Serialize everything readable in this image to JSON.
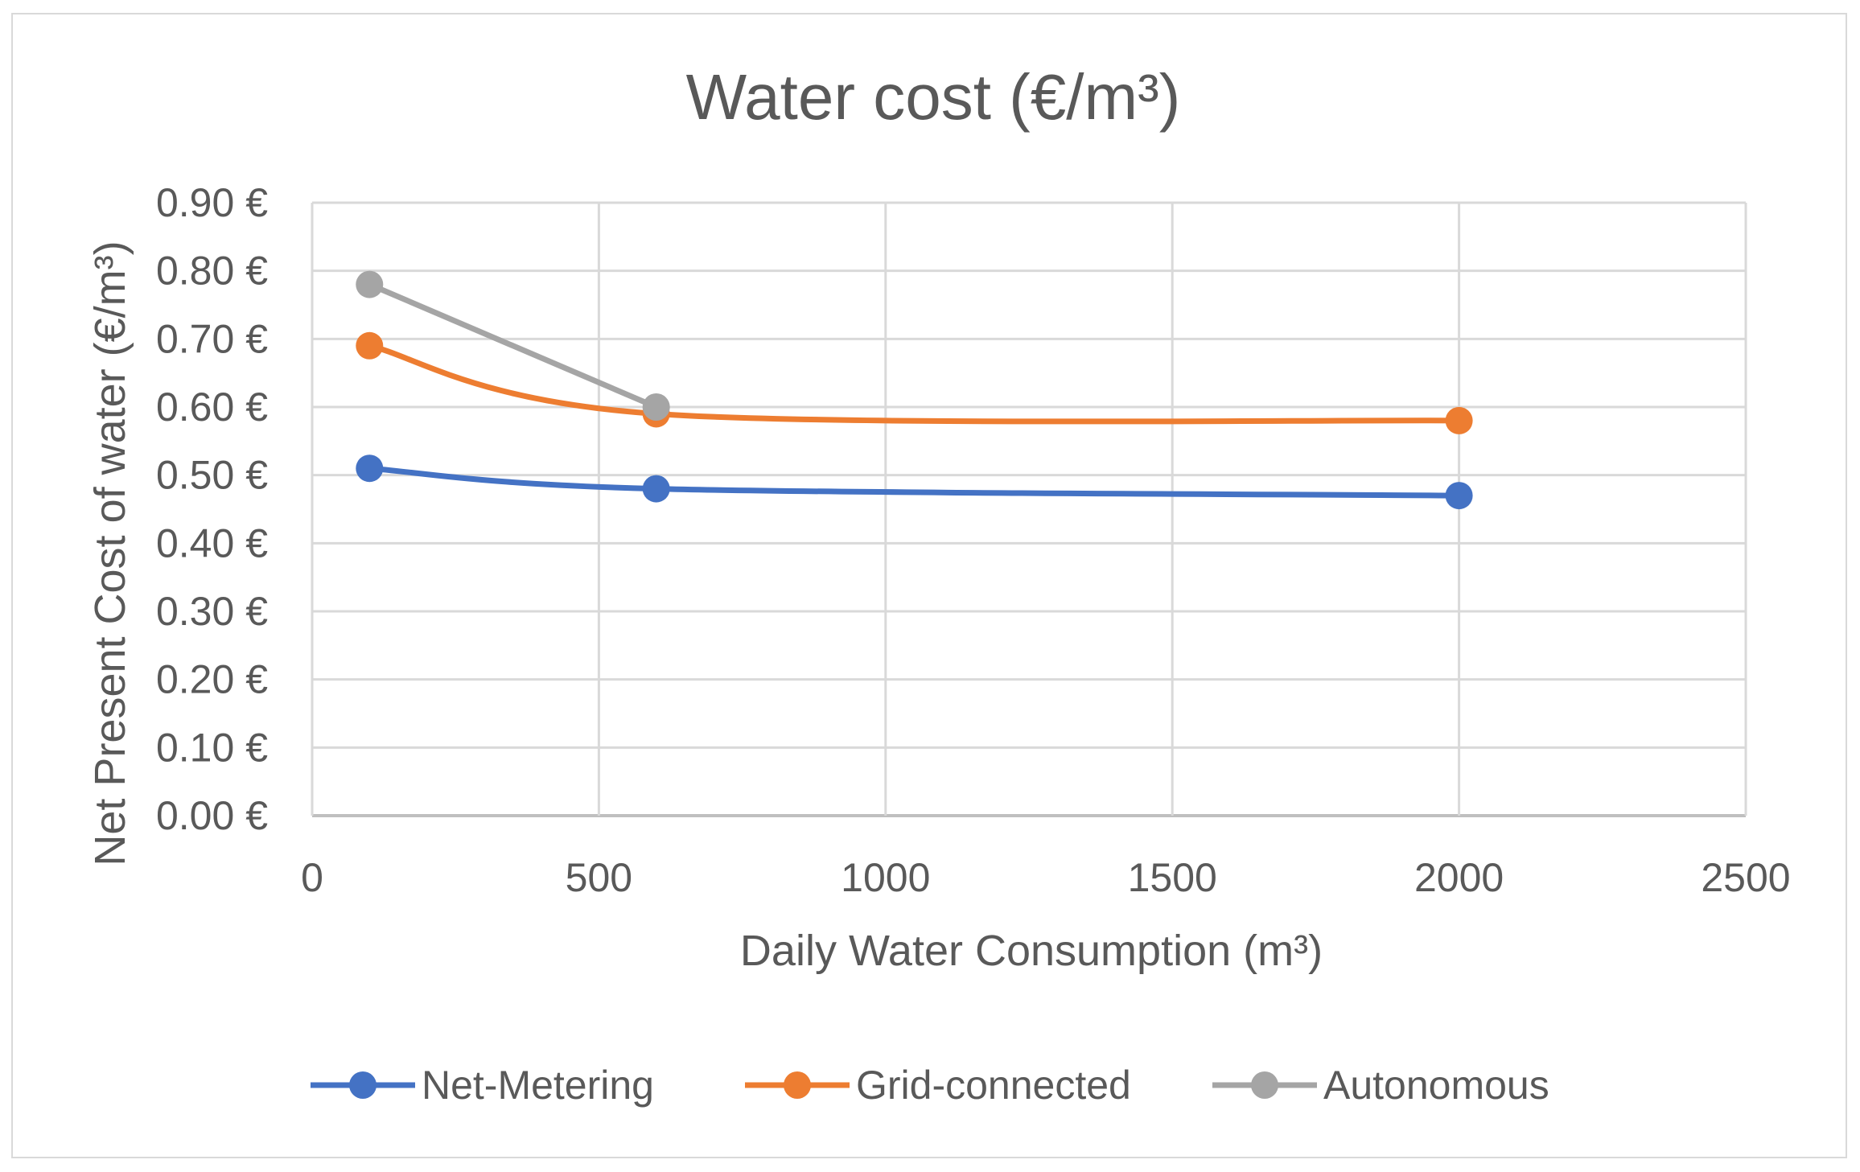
{
  "chart_data": {
    "type": "line",
    "title": "Water cost (€/m³)",
    "xlabel": "Daily Water Consumption (m³)",
    "ylabel": "Net Present Cost of water (€/m³)",
    "xlim": [
      0,
      2500
    ],
    "ylim": [
      0,
      0.9
    ],
    "x_ticks": [
      0,
      500,
      1000,
      1500,
      2000,
      2500
    ],
    "x_tick_labels": [
      "0",
      "500",
      "1000",
      "1500",
      "2000",
      "2500"
    ],
    "y_ticks": [
      0,
      0.1,
      0.2,
      0.3,
      0.4,
      0.5,
      0.6,
      0.7,
      0.8,
      0.9
    ],
    "y_tick_labels": [
      "0.00 €",
      "0.10 €",
      "0.20 €",
      "0.30 €",
      "0.40 €",
      "0.50 €",
      "0.60 €",
      "0.70 €",
      "0.80 €",
      "0.90 €"
    ],
    "grid": true,
    "legend_position": "bottom",
    "series": [
      {
        "name": "Net-Metering",
        "color": "#4472c4",
        "x": [
          100,
          600,
          2000
        ],
        "y": [
          0.51,
          0.48,
          0.47
        ]
      },
      {
        "name": "Grid-connected",
        "color": "#ed7d31",
        "x": [
          100,
          600,
          2000
        ],
        "y": [
          0.69,
          0.59,
          0.58
        ]
      },
      {
        "name": "Autonomous",
        "color": "#a5a5a5",
        "x": [
          100,
          600
        ],
        "y": [
          0.78,
          0.6
        ]
      }
    ]
  }
}
